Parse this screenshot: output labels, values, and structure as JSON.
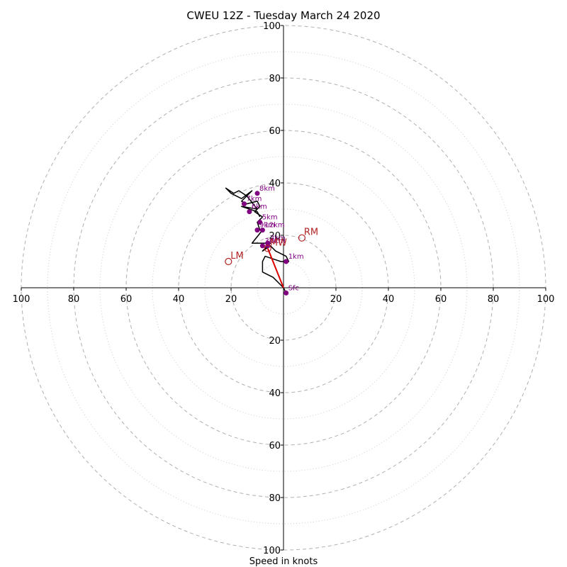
{
  "chart_data": {
    "type": "scatter",
    "title": "CWEU 12Z - Tuesday March 24 2020",
    "xlabel": "Speed in knots",
    "ylabel": "",
    "axis_max": 100,
    "major_rings": [
      20,
      40,
      60,
      80,
      100
    ],
    "minor_rings": [
      10,
      30,
      50,
      70,
      90
    ],
    "tick_labels": {
      "top": [
        "20",
        "40",
        "60",
        "80",
        "100"
      ],
      "bottom": [
        "20",
        "40",
        "60",
        "80",
        "100"
      ],
      "left": [
        "20",
        "40",
        "60",
        "80",
        "100"
      ],
      "right": [
        "20",
        "40",
        "60",
        "80",
        "100"
      ]
    },
    "hodograph": {
      "u": [
        1,
        0,
        -4,
        -8,
        -8,
        -7,
        -4,
        -1,
        2,
        1,
        -3,
        -5,
        -8,
        -7,
        -5,
        -12,
        -8,
        -9,
        -10,
        -8,
        -11,
        -9,
        -10,
        -14,
        -16,
        -13,
        -12,
        -16,
        -20,
        -22,
        -19,
        -17,
        -14,
        -10,
        -16,
        -13,
        -10,
        -9
      ],
      "v": [
        -2,
        0,
        4,
        6,
        10,
        12,
        11,
        10,
        10,
        12,
        14,
        16,
        14,
        15,
        17,
        17,
        22,
        22,
        25,
        27,
        29,
        31,
        33,
        32,
        33,
        36,
        37,
        34,
        36,
        38,
        36,
        37,
        35,
        30,
        31,
        30,
        29,
        27
      ],
      "color": "#000000"
    },
    "height_markers": [
      {
        "label": "Sfc",
        "u": 1,
        "v": -2
      },
      {
        "label": "1km",
        "u": 1,
        "v": 10
      },
      {
        "label": "2km",
        "u": -6,
        "v": 17
      },
      {
        "label": "3km",
        "u": -8,
        "v": 16
      },
      {
        "label": "4km",
        "u": -6,
        "v": 16
      },
      {
        "label": "5km",
        "u": -9,
        "v": 25
      },
      {
        "label": "6km",
        "u": -13,
        "v": 29
      },
      {
        "label": "7km",
        "u": -15,
        "v": 32
      },
      {
        "label": "8km",
        "u": -10,
        "v": 36
      },
      {
        "label": "9km",
        "u": -10,
        "v": 22
      },
      {
        "label": "12km",
        "u": -8,
        "v": 22
      }
    ],
    "storm_motion": [
      {
        "label": "RM",
        "u": 7,
        "v": 19
      },
      {
        "label": "LM",
        "u": -21,
        "v": 10
      },
      {
        "label": "MW",
        "u": -6,
        "v": 15
      }
    ],
    "shear_vector": {
      "u0": 0,
      "v0": 0,
      "u1": -6,
      "v1": 15,
      "color": "#dd0000"
    },
    "colors": {
      "marker": "#800080",
      "storm_motion": "#b22222",
      "major_ring": "#b0b0b0",
      "minor_ring": "#cccccc",
      "axis": "#000000"
    }
  }
}
